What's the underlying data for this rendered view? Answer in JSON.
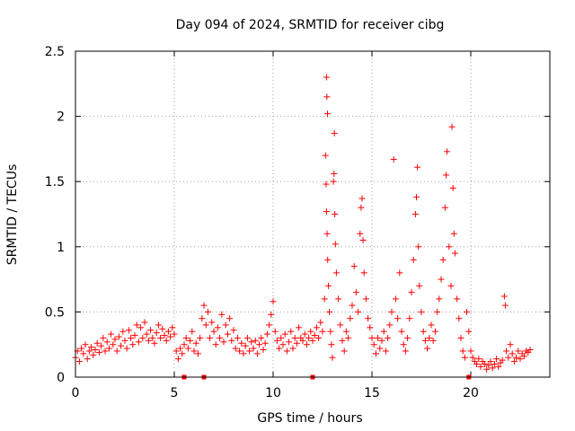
{
  "chart_data": {
    "type": "scatter",
    "title": "Day 094 of 2024, SRMTID for receiver cibg",
    "xlabel": "GPS time / hours",
    "ylabel": "SRMTID / TECUs",
    "xlim": [
      0,
      24
    ],
    "ylim": [
      0,
      2.5
    ],
    "x_ticks": [
      "0",
      "5",
      "10",
      "15",
      "20"
    ],
    "y_ticks": [
      "0",
      "0.5",
      "1",
      "1.5",
      "2",
      "2.5"
    ],
    "grid": true,
    "marker": "+",
    "color": "#ff0000",
    "axis_markers_x": [
      5.5,
      6.5,
      12.0,
      19.9
    ],
    "series": [
      {
        "name": "SRMTID",
        "points": [
          [
            0.0,
            0.15
          ],
          [
            0.1,
            0.2
          ],
          [
            0.2,
            0.12
          ],
          [
            0.3,
            0.22
          ],
          [
            0.4,
            0.18
          ],
          [
            0.5,
            0.25
          ],
          [
            0.6,
            0.14
          ],
          [
            0.7,
            0.2
          ],
          [
            0.8,
            0.23
          ],
          [
            0.9,
            0.17
          ],
          [
            1.0,
            0.21
          ],
          [
            1.1,
            0.26
          ],
          [
            1.2,
            0.19
          ],
          [
            1.3,
            0.24
          ],
          [
            1.4,
            0.3
          ],
          [
            1.5,
            0.2
          ],
          [
            1.6,
            0.27
          ],
          [
            1.7,
            0.22
          ],
          [
            1.8,
            0.33
          ],
          [
            1.9,
            0.25
          ],
          [
            2.0,
            0.29
          ],
          [
            2.1,
            0.2
          ],
          [
            2.2,
            0.31
          ],
          [
            2.3,
            0.24
          ],
          [
            2.4,
            0.35
          ],
          [
            2.5,
            0.28
          ],
          [
            2.6,
            0.22
          ],
          [
            2.7,
            0.36
          ],
          [
            2.8,
            0.3
          ],
          [
            2.9,
            0.25
          ],
          [
            3.0,
            0.32
          ],
          [
            3.1,
            0.4
          ],
          [
            3.2,
            0.27
          ],
          [
            3.3,
            0.38
          ],
          [
            3.4,
            0.3
          ],
          [
            3.5,
            0.42
          ],
          [
            3.6,
            0.33
          ],
          [
            3.7,
            0.28
          ],
          [
            3.8,
            0.36
          ],
          [
            3.9,
            0.3
          ],
          [
            4.0,
            0.26
          ],
          [
            4.1,
            0.34
          ],
          [
            4.2,
            0.4
          ],
          [
            4.3,
            0.3
          ],
          [
            4.4,
            0.37
          ],
          [
            4.5,
            0.32
          ],
          [
            4.6,
            0.28
          ],
          [
            4.7,
            0.35
          ],
          [
            4.8,
            0.31
          ],
          [
            4.9,
            0.38
          ],
          [
            5.0,
            0.33
          ],
          [
            5.1,
            0.2
          ],
          [
            5.2,
            0.14
          ],
          [
            5.3,
            0.22
          ],
          [
            5.4,
            0.18
          ],
          [
            5.5,
            0.25
          ],
          [
            5.6,
            0.3
          ],
          [
            5.7,
            0.22
          ],
          [
            5.8,
            0.28
          ],
          [
            5.9,
            0.35
          ],
          [
            6.0,
            0.2
          ],
          [
            6.1,
            0.26
          ],
          [
            6.2,
            0.18
          ],
          [
            6.3,
            0.3
          ],
          [
            6.4,
            0.45
          ],
          [
            6.5,
            0.55
          ],
          [
            6.6,
            0.4
          ],
          [
            6.7,
            0.5
          ],
          [
            6.8,
            0.3
          ],
          [
            6.9,
            0.42
          ],
          [
            7.0,
            0.35
          ],
          [
            7.1,
            0.25
          ],
          [
            7.2,
            0.38
          ],
          [
            7.3,
            0.3
          ],
          [
            7.4,
            0.48
          ],
          [
            7.5,
            0.27
          ],
          [
            7.6,
            0.4
          ],
          [
            7.7,
            0.33
          ],
          [
            7.8,
            0.45
          ],
          [
            7.9,
            0.28
          ],
          [
            8.0,
            0.36
          ],
          [
            8.1,
            0.22
          ],
          [
            8.2,
            0.3
          ],
          [
            8.3,
            0.2
          ],
          [
            8.4,
            0.26
          ],
          [
            8.5,
            0.18
          ],
          [
            8.6,
            0.24
          ],
          [
            8.7,
            0.3
          ],
          [
            8.8,
            0.2
          ],
          [
            8.9,
            0.27
          ],
          [
            9.0,
            0.22
          ],
          [
            9.1,
            0.28
          ],
          [
            9.2,
            0.18
          ],
          [
            9.3,
            0.25
          ],
          [
            9.4,
            0.3
          ],
          [
            9.5,
            0.21
          ],
          [
            9.6,
            0.26
          ],
          [
            9.7,
            0.33
          ],
          [
            9.8,
            0.4
          ],
          [
            9.9,
            0.48
          ],
          [
            10.0,
            0.58
          ],
          [
            10.1,
            0.35
          ],
          [
            10.2,
            0.28
          ],
          [
            10.3,
            0.22
          ],
          [
            10.4,
            0.3
          ],
          [
            10.5,
            0.25
          ],
          [
            10.6,
            0.33
          ],
          [
            10.7,
            0.2
          ],
          [
            10.8,
            0.27
          ],
          [
            10.9,
            0.35
          ],
          [
            11.0,
            0.22
          ],
          [
            11.1,
            0.3
          ],
          [
            11.2,
            0.26
          ],
          [
            11.3,
            0.38
          ],
          [
            11.4,
            0.3
          ],
          [
            11.5,
            0.28
          ],
          [
            11.6,
            0.33
          ],
          [
            11.7,
            0.25
          ],
          [
            11.8,
            0.3
          ],
          [
            11.9,
            0.35
          ],
          [
            12.0,
            0.28
          ],
          [
            12.1,
            0.32
          ],
          [
            12.2,
            0.38
          ],
          [
            12.3,
            0.3
          ],
          [
            12.4,
            0.42
          ],
          [
            12.5,
            0.35
          ],
          [
            12.6,
            0.6
          ],
          [
            12.7,
            2.3
          ],
          [
            12.72,
            2.15
          ],
          [
            12.75,
            2.02
          ],
          [
            12.65,
            1.7
          ],
          [
            12.68,
            1.48
          ],
          [
            12.7,
            1.27
          ],
          [
            12.73,
            1.1
          ],
          [
            12.76,
            0.9
          ],
          [
            12.8,
            0.7
          ],
          [
            12.85,
            0.5
          ],
          [
            12.9,
            0.35
          ],
          [
            12.95,
            0.25
          ],
          [
            13.0,
            0.15
          ],
          [
            13.05,
            1.5
          ],
          [
            13.08,
            1.56
          ],
          [
            13.1,
            1.87
          ],
          [
            13.12,
            1.25
          ],
          [
            13.15,
            1.02
          ],
          [
            13.2,
            0.8
          ],
          [
            13.3,
            0.6
          ],
          [
            13.4,
            0.4
          ],
          [
            13.5,
            0.28
          ],
          [
            13.6,
            0.2
          ],
          [
            13.7,
            0.35
          ],
          [
            13.8,
            0.3
          ],
          [
            13.9,
            0.45
          ],
          [
            14.0,
            0.55
          ],
          [
            14.1,
            0.85
          ],
          [
            14.2,
            0.65
          ],
          [
            14.3,
            0.5
          ],
          [
            14.4,
            1.1
          ],
          [
            14.45,
            1.3
          ],
          [
            14.5,
            1.37
          ],
          [
            14.55,
            1.05
          ],
          [
            14.6,
            0.8
          ],
          [
            14.7,
            0.6
          ],
          [
            14.8,
            0.45
          ],
          [
            14.9,
            0.38
          ],
          [
            15.0,
            0.3
          ],
          [
            15.1,
            0.25
          ],
          [
            15.2,
            0.18
          ],
          [
            15.3,
            0.3
          ],
          [
            15.4,
            0.22
          ],
          [
            15.5,
            0.28
          ],
          [
            15.6,
            0.35
          ],
          [
            15.7,
            0.2
          ],
          [
            15.8,
            0.3
          ],
          [
            15.9,
            0.4
          ],
          [
            16.0,
            0.5
          ],
          [
            16.1,
            1.67
          ],
          [
            16.2,
            0.6
          ],
          [
            16.3,
            0.45
          ],
          [
            16.4,
            0.8
          ],
          [
            16.5,
            0.35
          ],
          [
            16.6,
            0.25
          ],
          [
            16.7,
            0.2
          ],
          [
            16.8,
            0.3
          ],
          [
            16.9,
            0.45
          ],
          [
            17.0,
            0.65
          ],
          [
            17.1,
            0.9
          ],
          [
            17.2,
            1.25
          ],
          [
            17.25,
            1.38
          ],
          [
            17.3,
            1.61
          ],
          [
            17.35,
            1.0
          ],
          [
            17.4,
            0.7
          ],
          [
            17.5,
            0.5
          ],
          [
            17.6,
            0.35
          ],
          [
            17.7,
            0.28
          ],
          [
            17.8,
            0.22
          ],
          [
            17.9,
            0.3
          ],
          [
            18.0,
            0.4
          ],
          [
            18.1,
            0.28
          ],
          [
            18.2,
            0.35
          ],
          [
            18.3,
            0.5
          ],
          [
            18.4,
            0.6
          ],
          [
            18.5,
            0.75
          ],
          [
            18.6,
            0.9
          ],
          [
            18.7,
            1.3
          ],
          [
            18.75,
            1.55
          ],
          [
            18.8,
            1.73
          ],
          [
            18.9,
            1.0
          ],
          [
            19.0,
            0.7
          ],
          [
            19.05,
            1.92
          ],
          [
            19.1,
            1.45
          ],
          [
            19.15,
            1.1
          ],
          [
            19.2,
            0.95
          ],
          [
            19.3,
            0.6
          ],
          [
            19.4,
            0.45
          ],
          [
            19.5,
            0.3
          ],
          [
            19.6,
            0.2
          ],
          [
            19.7,
            0.15
          ],
          [
            19.8,
            0.5
          ],
          [
            19.9,
            0.35
          ],
          [
            20.0,
            0.2
          ],
          [
            20.1,
            0.15
          ],
          [
            20.2,
            0.12
          ],
          [
            20.3,
            0.1
          ],
          [
            20.4,
            0.14
          ],
          [
            20.5,
            0.08
          ],
          [
            20.6,
            0.12
          ],
          [
            20.7,
            0.1
          ],
          [
            20.8,
            0.06
          ],
          [
            20.9,
            0.09
          ],
          [
            21.0,
            0.12
          ],
          [
            21.1,
            0.07
          ],
          [
            21.2,
            0.1
          ],
          [
            21.3,
            0.14
          ],
          [
            21.4,
            0.08
          ],
          [
            21.5,
            0.11
          ],
          [
            21.6,
            0.13
          ],
          [
            21.7,
            0.62
          ],
          [
            21.75,
            0.55
          ],
          [
            21.8,
            0.2
          ],
          [
            21.9,
            0.15
          ],
          [
            22.0,
            0.25
          ],
          [
            22.1,
            0.18
          ],
          [
            22.2,
            0.12
          ],
          [
            22.3,
            0.15
          ],
          [
            22.4,
            0.2
          ],
          [
            22.5,
            0.14
          ],
          [
            22.6,
            0.18
          ],
          [
            22.7,
            0.16
          ],
          [
            22.8,
            0.2
          ],
          [
            22.9,
            0.19
          ],
          [
            23.0,
            0.21
          ]
        ]
      }
    ]
  }
}
